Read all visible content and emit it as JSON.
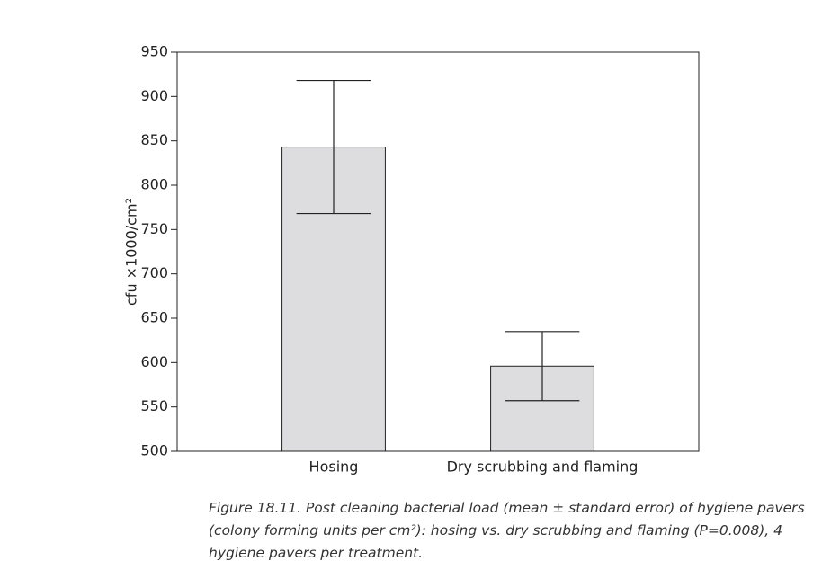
{
  "chart_data": {
    "type": "bar",
    "categories": [
      "Hosing",
      "Dry scrubbing and flaming"
    ],
    "values": [
      843,
      596
    ],
    "errors": [
      75,
      39
    ],
    "color": "#dddddf",
    "y_label": "cfu ×1000/cm²",
    "ylim": [
      500,
      950
    ],
    "yticks": [
      500,
      550,
      600,
      650,
      700,
      750,
      800,
      850,
      900,
      950
    ],
    "grid": false,
    "caption": "Figure 18.11. Post cleaning bacterial load (mean ± standard error) of hygiene pavers (colony forming units per cm²): hosing vs. dry scrubbing and flaming (P=0.008), 4 hygiene pavers per treatment."
  }
}
